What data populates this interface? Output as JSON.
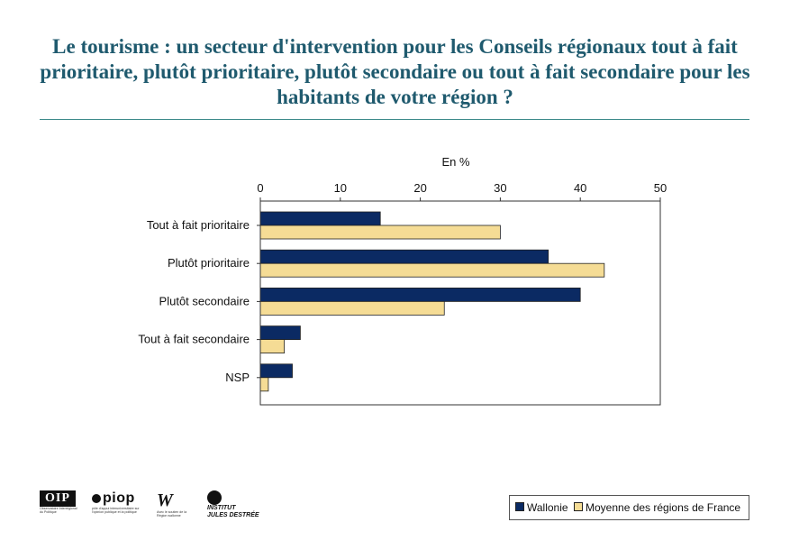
{
  "page": {
    "title": "Le tourisme : un secteur d'intervention pour les Conseils régionaux tout à fait prioritaire, plutôt prioritaire, plutôt secondaire ou tout à fait secondaire pour les habitants de votre région ?"
  },
  "colors": {
    "title": "#1f5a6e",
    "wallonie": "#0b2a63",
    "france": "#f5dc95"
  },
  "chart_data": {
    "type": "bar",
    "orientation": "horizontal",
    "title": "Le tourisme : un secteur d'intervention pour les Conseils régionaux tout à fait prioritaire, plutôt prioritaire, plutôt secondaire ou tout à fait secondaire pour les habitants de votre région ?",
    "unit_label": "En %",
    "xlim": [
      0,
      50
    ],
    "x_ticks": [
      0,
      10,
      20,
      30,
      40,
      50
    ],
    "categories": [
      "Tout à fait prioritaire",
      "Plutôt prioritaire",
      "Plutôt secondaire",
      "Tout à fait secondaire",
      "NSP"
    ],
    "series": [
      {
        "name": "Wallonie",
        "color": "#0b2a63",
        "values": [
          15,
          36,
          40,
          5,
          4
        ]
      },
      {
        "name": "Moyenne des régions de France",
        "color": "#f5dc95",
        "values": [
          30,
          43,
          23,
          3,
          1
        ]
      }
    ],
    "legend_position": "bottom-right",
    "grid": false
  },
  "logos": {
    "oip": {
      "mark": "OIP",
      "caption": "Observatoire Interrégional du Politique"
    },
    "piop": {
      "mark": "piop",
      "caption": "pôle d'appui interuniversitaire sur l'opinion publique et la politique"
    },
    "wallonie": {
      "mark": "W",
      "caption": "Avec le soutien de la Région wallonne"
    },
    "ijd": {
      "line1": "INSTITUT",
      "line2": "JULES DESTRÉE"
    }
  }
}
